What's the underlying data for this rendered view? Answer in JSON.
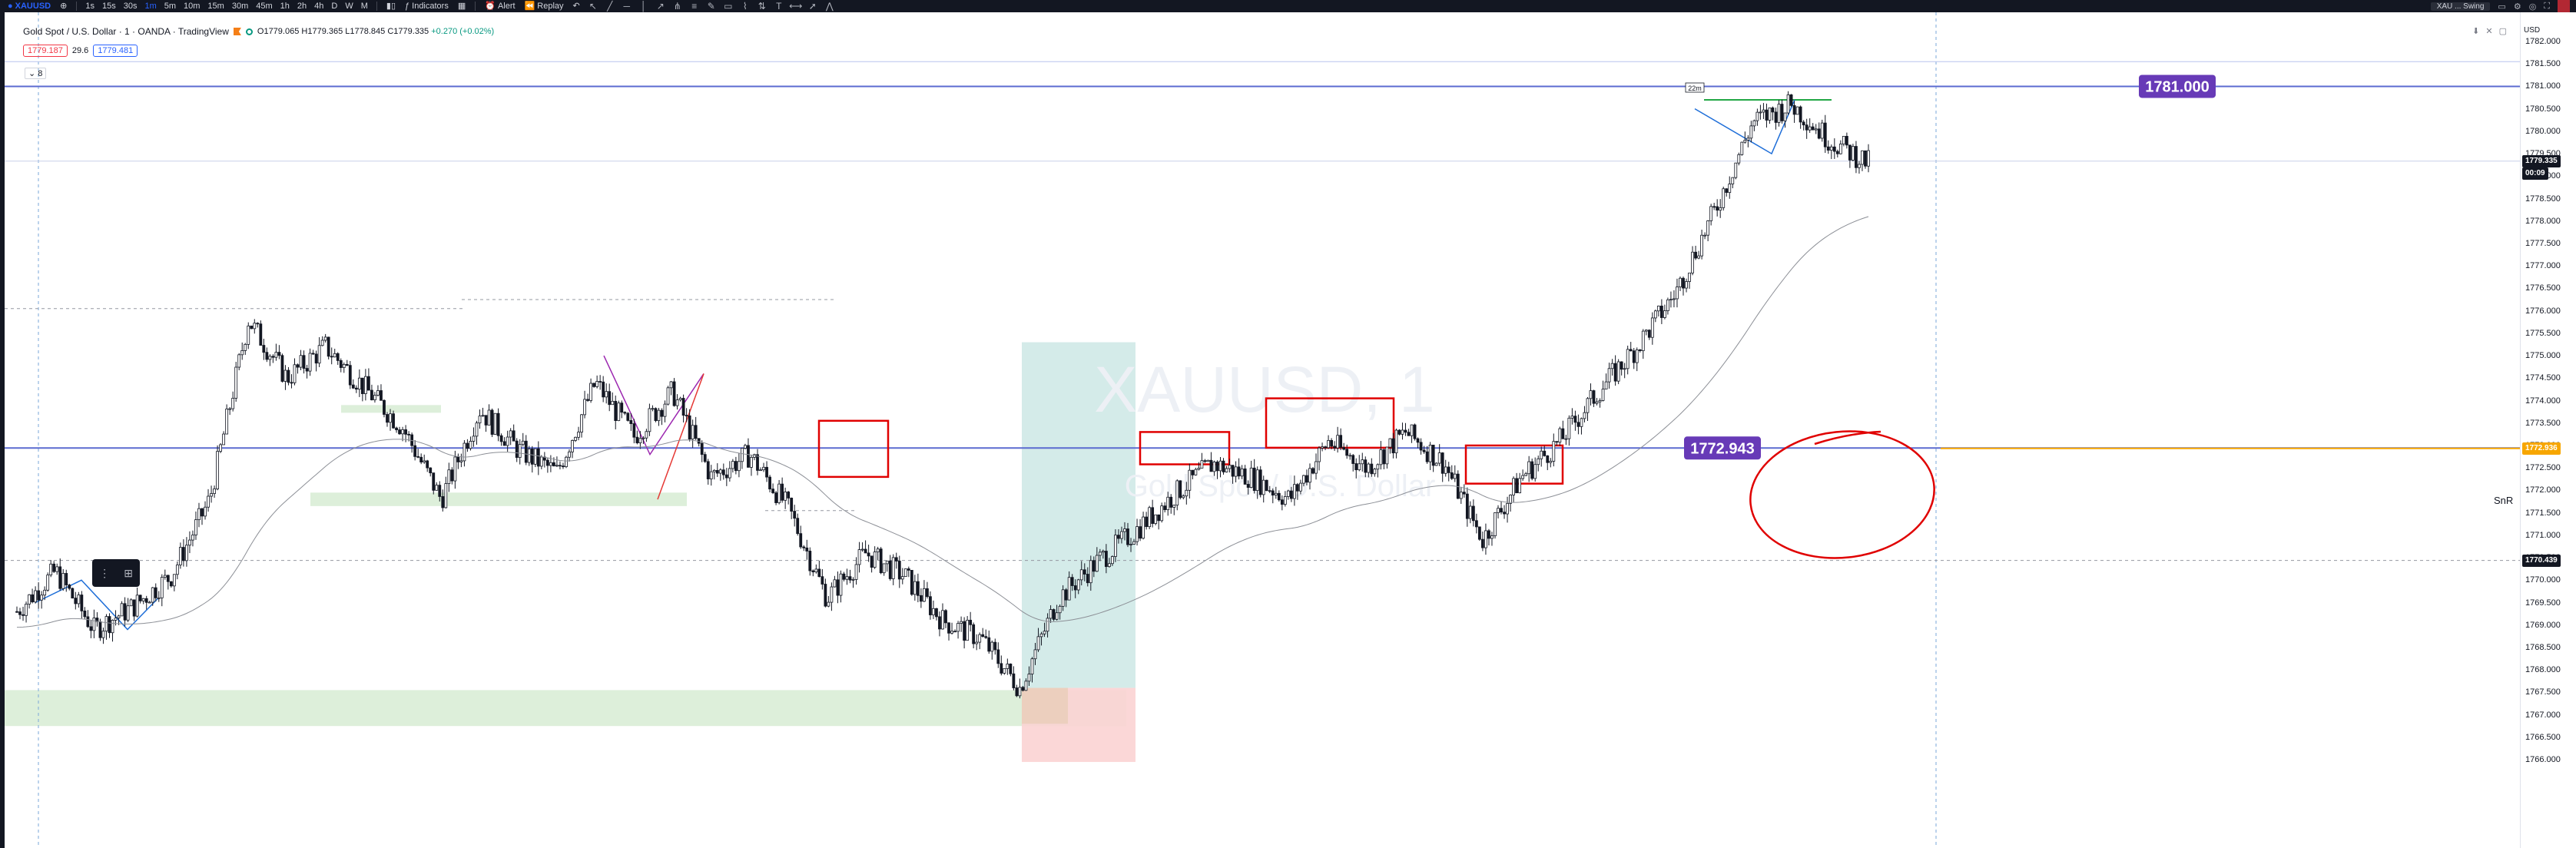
{
  "toolbar": {
    "symbol": "XAUUSD",
    "intervals": [
      "1s",
      "15s",
      "30s",
      "1m",
      "5m",
      "10m",
      "15m",
      "30m",
      "45m",
      "1h",
      "2h",
      "4h",
      "D",
      "W",
      "M"
    ],
    "active_interval": "1m",
    "indicators_label": "Indicators",
    "alert_label": "Alert",
    "replay_label": "Replay",
    "account_label": "XAU ... Swing",
    "tools": [
      "cursor-icon",
      "trend-line-icon",
      "horizontal-line-icon",
      "vertical-line-icon",
      "ray-icon",
      "pitchfork-icon",
      "fib-icon",
      "brush-icon",
      "rectangle-icon",
      "path-icon",
      "long-position-icon",
      "text-icon",
      "measure-icon",
      "arrow-icon",
      "pattern-icon"
    ]
  },
  "legend": {
    "title": "Gold Spot / U.S. Dollar · 1 · OANDA · TradingView",
    "open": "O1779.065",
    "high": "H1779.365",
    "low": "L1778.845",
    "close": "C1779.335",
    "change": "+0.270 (+0.02%)",
    "bid": "1779.187",
    "spread": "29.6",
    "ask": "1779.481",
    "collapse_label": "8"
  },
  "watermark": {
    "symbol": "XAUUSD, 1",
    "name": "Gold Spot / U.S. Dollar"
  },
  "price_scale": {
    "currency": "USD",
    "ticks": [
      "1782.000",
      "1781.500",
      "1781.000",
      "1780.500",
      "1780.000",
      "1779.500",
      "1779.000",
      "1778.500",
      "1778.000",
      "1777.500",
      "1777.000",
      "1776.500",
      "1776.000",
      "1775.500",
      "1775.000",
      "1774.500",
      "1774.000",
      "1773.500",
      "1773.000",
      "1772.500",
      "1772.000",
      "1771.500",
      "1771.000",
      "1770.500",
      "1770.000",
      "1769.500",
      "1769.000",
      "1768.500",
      "1768.000",
      "1767.500",
      "1767.000",
      "1766.500",
      "1766.000"
    ],
    "current_price": "1779.335",
    "countdown": "00:09",
    "snr_price": "1772.936",
    "dashed_price": "1770.439"
  },
  "annotations": {
    "label_1781": "1781.000",
    "label_1772": "1772.943",
    "snr_label": "SnR",
    "time_marker": "22m"
  },
  "colors": {
    "bg": "#ffffff",
    "candle_up": "#131722",
    "horizontal_line": "#5b6bd0",
    "label_purple": "#673ab7",
    "snr_orange": "#f7a600",
    "box_red": "#e00000",
    "zone_green": "#d7ecd4",
    "position_teal": "#c9e6e3",
    "position_red": "#fbd3d3"
  },
  "chart_data": {
    "type": "line",
    "x": [
      0,
      50,
      100,
      150,
      200,
      250,
      300,
      350,
      400,
      450,
      500,
      550,
      600,
      650,
      700,
      750,
      800,
      850,
      900,
      950,
      1000,
      1050,
      1100,
      1150,
      1200,
      1250,
      1300,
      1350,
      1400,
      1450,
      1500,
      1550,
      1600,
      1650,
      1700,
      1750,
      1800,
      1850,
      1900,
      1950,
      2000,
      2050,
      2100,
      2150,
      2200,
      2250,
      2300,
      2350,
      2400
    ],
    "series": [
      {
        "values": [
          1769.3,
          1770.2,
          1768.9,
          1769.4,
          1770.1,
          1771.8,
          1775.8,
          1774.5,
          1775.2,
          1774.3,
          1773.4,
          1771.8,
          1773.8,
          1772.9,
          1772.4,
          1774.4,
          1773.2,
          1774.2,
          1772.3,
          1772.8,
          1771.6,
          1769.6,
          1770.6,
          1770.1,
          1769.1,
          1768.7,
          1767.6,
          1769.6,
          1770.4,
          1771.1,
          1771.9,
          1772.6,
          1772.3,
          1771.8,
          1773.1,
          1772.5,
          1773.3,
          1772.6,
          1770.9,
          1772.3,
          1773.1,
          1774.2,
          1775.2,
          1776.4,
          1778.2,
          1780.2,
          1780.6,
          1779.8,
          1779.3
        ]
      }
    ],
    "ylim": [
      1765.8,
      1782.2
    ]
  }
}
